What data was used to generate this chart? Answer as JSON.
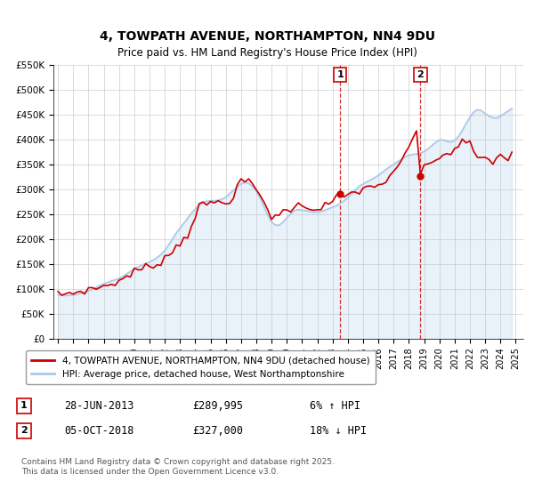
{
  "title": "4, TOWPATH AVENUE, NORTHAMPTON, NN4 9DU",
  "subtitle": "Price paid vs. HM Land Registry's House Price Index (HPI)",
  "title_fontsize": 11,
  "subtitle_fontsize": 9,
  "background_color": "#ffffff",
  "plot_bg_color": "#ffffff",
  "grid_color": "#cccccc",
  "red_line_color": "#cc0000",
  "blue_line_color": "#aac8e8",
  "vline_color": "#cc0000",
  "vline_style": "--",
  "ylim": [
    0,
    550000
  ],
  "yticks": [
    0,
    50000,
    100000,
    150000,
    200000,
    250000,
    300000,
    350000,
    400000,
    450000,
    500000,
    550000
  ],
  "ytick_labels": [
    "£0",
    "£50K",
    "£100K",
    "£150K",
    "£200K",
    "£250K",
    "£300K",
    "£350K",
    "£400K",
    "£450K",
    "£500K",
    "£550K"
  ],
  "xlim_start": 1995,
  "xlim_end": 2025.5,
  "xtick_years": [
    1995,
    1996,
    1997,
    1998,
    1999,
    2000,
    2001,
    2002,
    2003,
    2004,
    2005,
    2006,
    2007,
    2008,
    2009,
    2010,
    2011,
    2012,
    2013,
    2014,
    2015,
    2016,
    2017,
    2018,
    2019,
    2020,
    2021,
    2022,
    2023,
    2024,
    2025
  ],
  "event1_x": 2013.49,
  "event1_label": "1",
  "event2_x": 2018.76,
  "event2_label": "2",
  "event1_dot_y": 289995,
  "event2_dot_y": 327000,
  "legend_label_red": "4, TOWPATH AVENUE, NORTHAMPTON, NN4 9DU (detached house)",
  "legend_label_blue": "HPI: Average price, detached house, West Northamptonshire",
  "annotation_rows": [
    {
      "label": "1",
      "date": "28-JUN-2013",
      "price": "£289,995",
      "change": "6% ↑ HPI"
    },
    {
      "label": "2",
      "date": "05-OCT-2018",
      "price": "£327,000",
      "change": "18% ↓ HPI"
    }
  ],
  "footer": "Contains HM Land Registry data © Crown copyright and database right 2025.\nThis data is licensed under the Open Government Licence v3.0.",
  "hpi_data": {
    "years": [
      1995.0,
      1995.25,
      1995.5,
      1995.75,
      1996.0,
      1996.25,
      1996.5,
      1996.75,
      1997.0,
      1997.25,
      1997.5,
      1997.75,
      1998.0,
      1998.25,
      1998.5,
      1998.75,
      1999.0,
      1999.25,
      1999.5,
      1999.75,
      2000.0,
      2000.25,
      2000.5,
      2000.75,
      2001.0,
      2001.25,
      2001.5,
      2001.75,
      2002.0,
      2002.25,
      2002.5,
      2002.75,
      2003.0,
      2003.25,
      2003.5,
      2003.75,
      2004.0,
      2004.25,
      2004.5,
      2004.75,
      2005.0,
      2005.25,
      2005.5,
      2005.75,
      2006.0,
      2006.25,
      2006.5,
      2006.75,
      2007.0,
      2007.25,
      2007.5,
      2007.75,
      2008.0,
      2008.25,
      2008.5,
      2008.75,
      2009.0,
      2009.25,
      2009.5,
      2009.75,
      2010.0,
      2010.25,
      2010.5,
      2010.75,
      2011.0,
      2011.25,
      2011.5,
      2011.75,
      2012.0,
      2012.25,
      2012.5,
      2012.75,
      2013.0,
      2013.25,
      2013.5,
      2013.75,
      2014.0,
      2014.25,
      2014.5,
      2014.75,
      2015.0,
      2015.25,
      2015.5,
      2015.75,
      2016.0,
      2016.25,
      2016.5,
      2016.75,
      2017.0,
      2017.25,
      2017.5,
      2017.75,
      2018.0,
      2018.25,
      2018.5,
      2018.75,
      2019.0,
      2019.25,
      2019.5,
      2019.75,
      2020.0,
      2020.25,
      2020.5,
      2020.75,
      2021.0,
      2021.25,
      2021.5,
      2021.75,
      2022.0,
      2022.25,
      2022.5,
      2022.75,
      2023.0,
      2023.25,
      2023.5,
      2023.75,
      2024.0,
      2024.25,
      2024.5,
      2024.75
    ],
    "values": [
      88000,
      87000,
      86500,
      87000,
      88000,
      89000,
      91000,
      93000,
      96000,
      99000,
      103000,
      107000,
      110000,
      113000,
      116000,
      118000,
      121000,
      125000,
      130000,
      135000,
      140000,
      144000,
      148000,
      151000,
      154000,
      158000,
      163000,
      169000,
      177000,
      188000,
      200000,
      212000,
      222000,
      232000,
      242000,
      252000,
      260000,
      268000,
      273000,
      276000,
      277000,
      277000,
      278000,
      280000,
      284000,
      291000,
      298000,
      305000,
      311000,
      314000,
      312000,
      306000,
      297000,
      283000,
      265000,
      248000,
      234000,
      228000,
      228000,
      234000,
      243000,
      251000,
      257000,
      259000,
      258000,
      257000,
      255000,
      254000,
      254000,
      255000,
      258000,
      261000,
      264000,
      267000,
      272000,
      277000,
      283000,
      291000,
      299000,
      306000,
      311000,
      315000,
      319000,
      323000,
      328000,
      334000,
      340000,
      345000,
      350000,
      355000,
      360000,
      365000,
      368000,
      370000,
      371000,
      372000,
      376000,
      381000,
      388000,
      394000,
      399000,
      399000,
      396000,
      395000,
      398000,
      406000,
      418000,
      432000,
      445000,
      455000,
      460000,
      458000,
      452000,
      447000,
      444000,
      443000,
      447000,
      452000,
      457000,
      462000
    ]
  },
  "price_data": {
    "years": [
      1995.5,
      2000.75,
      2004.25,
      2007.0,
      2009.0,
      2011.5,
      2013.49,
      2018.76
    ],
    "values": [
      88000,
      152000,
      265000,
      320000,
      245000,
      265000,
      289995,
      327000
    ]
  }
}
